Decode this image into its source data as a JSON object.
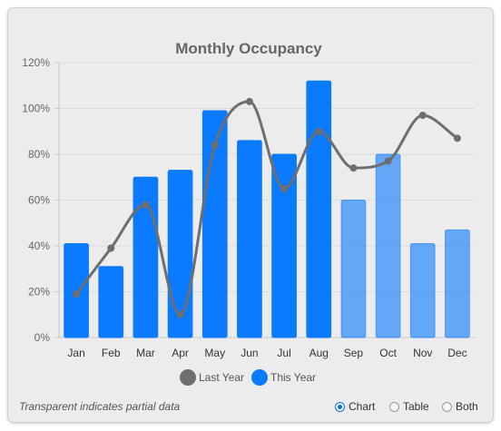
{
  "chart_data": {
    "type": "bar",
    "title": "Monthly Occupancy",
    "categories": [
      "Jan",
      "Feb",
      "Mar",
      "Apr",
      "May",
      "Jun",
      "Jul",
      "Aug",
      "Sep",
      "Oct",
      "Nov",
      "Dec"
    ],
    "series": [
      {
        "name": "This Year",
        "kind": "bar",
        "color": "#0a7aff",
        "values": [
          41,
          31,
          70,
          73,
          99,
          86,
          80,
          112,
          60,
          80,
          41,
          47
        ],
        "partial": [
          false,
          false,
          false,
          false,
          false,
          false,
          false,
          false,
          true,
          true,
          true,
          true
        ]
      },
      {
        "name": "Last Year",
        "kind": "line",
        "color": "#6e6e6e",
        "values": [
          19,
          39,
          58,
          10,
          84,
          103,
          65,
          90,
          74,
          77,
          97,
          87
        ]
      }
    ],
    "ylim": [
      0,
      120
    ],
    "yticks": [
      0,
      20,
      40,
      60,
      80,
      100,
      120
    ],
    "ytick_suffix": "%",
    "grid": true,
    "legend_position": "bottom"
  },
  "footer": {
    "note": "Transparent indicates partial data",
    "view_options": [
      {
        "label": "Chart",
        "checked": true
      },
      {
        "label": "Table",
        "checked": false
      },
      {
        "label": "Both",
        "checked": false
      }
    ]
  }
}
